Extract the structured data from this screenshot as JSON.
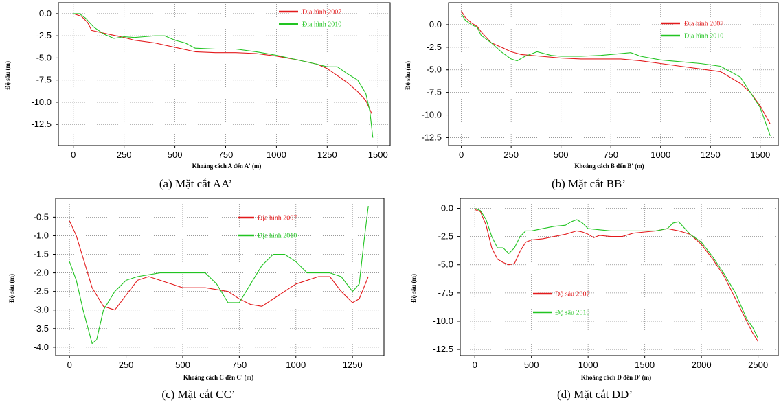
{
  "colors": {
    "series2007": "#e31a1c",
    "series2010": "#22c422",
    "grid": "#8a8a8a",
    "frame": "#000000"
  },
  "chart_data": [
    {
      "type": "line",
      "caption": "(a) Mặt cắt AA’",
      "xlabel": "Khoảng cách A đến A' (m)",
      "ylabel": "Độ sâu (m)",
      "xlim": [
        -50,
        1550
      ],
      "ylim": [
        -14.5,
        1.0
      ],
      "xticks": [
        0,
        250,
        500,
        750,
        1000,
        1250,
        1500
      ],
      "yticks": [
        0.0,
        -2.5,
        -5.0,
        -7.5,
        -10.0,
        -12.5
      ],
      "ytick_labels": [
        "0.0",
        "-2.5",
        "-5.0",
        "-7.5",
        "-10.0",
        "-12.5"
      ],
      "legend": "top-right",
      "series": [
        {
          "name": "Địa hình 2007",
          "color_key": "series2007",
          "x": [
            0,
            40,
            70,
            90,
            150,
            250,
            300,
            400,
            500,
            600,
            700,
            800,
            900,
            1000,
            1100,
            1200,
            1250,
            1300,
            1350,
            1400,
            1440,
            1470
          ],
          "y": [
            0,
            -0.3,
            -1.0,
            -1.9,
            -2.2,
            -2.7,
            -3.0,
            -3.3,
            -3.8,
            -4.3,
            -4.4,
            -4.4,
            -4.5,
            -4.8,
            -5.2,
            -5.7,
            -6.2,
            -7.0,
            -7.8,
            -8.8,
            -9.8,
            -11.3
          ]
        },
        {
          "name": "Địa hình 2010",
          "color_key": "series2010",
          "x": [
            0,
            30,
            60,
            100,
            150,
            200,
            250,
            300,
            350,
            400,
            450,
            500,
            550,
            600,
            700,
            800,
            900,
            1000,
            1100,
            1200,
            1250,
            1300,
            1350,
            1400,
            1440,
            1460,
            1475
          ],
          "y": [
            0,
            0,
            -0.5,
            -1.5,
            -2.3,
            -2.8,
            -2.6,
            -2.7,
            -2.6,
            -2.5,
            -2.5,
            -3.0,
            -3.3,
            -3.9,
            -4.0,
            -4.0,
            -4.3,
            -4.7,
            -5.2,
            -5.7,
            -6.0,
            -6.0,
            -6.8,
            -7.5,
            -9.0,
            -11.0,
            -14.0
          ]
        }
      ]
    },
    {
      "type": "line",
      "caption": "(b) Mặt cắt BB’",
      "xlabel": "Khoảng cách B đến B' (m)",
      "ylabel": "Độ sâu (m)",
      "xlim": [
        -40,
        1580
      ],
      "ylim": [
        -13.0,
        2.2
      ],
      "xticks": [
        0,
        250,
        500,
        750,
        1000,
        1250,
        1500
      ],
      "yticks": [
        0.0,
        -2.5,
        -5.0,
        -7.5,
        -10.0,
        -12.5
      ],
      "ytick_labels": [
        "0.0",
        "-2.5",
        "-5.0",
        "-7.5",
        "-10.0",
        "-12.5"
      ],
      "legend": "top-right",
      "series": [
        {
          "name": "Địa hình 2007",
          "color_key": "series2007",
          "x": [
            0,
            20,
            50,
            80,
            100,
            150,
            200,
            250,
            300,
            400,
            500,
            600,
            700,
            800,
            900,
            1000,
            1100,
            1200,
            1300,
            1400,
            1450,
            1500,
            1550
          ],
          "y": [
            1.5,
            0.8,
            0.2,
            -0.2,
            -0.8,
            -2.0,
            -2.5,
            -3.0,
            -3.3,
            -3.5,
            -3.7,
            -3.8,
            -3.8,
            -3.8,
            -4.0,
            -4.3,
            -4.6,
            -4.9,
            -5.2,
            -6.5,
            -7.5,
            -9.0,
            -11.0
          ]
        },
        {
          "name": "Địa hình 2010",
          "color_key": "series2010",
          "x": [
            0,
            20,
            50,
            80,
            100,
            150,
            200,
            250,
            280,
            320,
            380,
            450,
            500,
            600,
            700,
            800,
            850,
            900,
            1000,
            1100,
            1200,
            1300,
            1400,
            1450,
            1500,
            1550
          ],
          "y": [
            1.2,
            0.5,
            0.0,
            -0.3,
            -1.2,
            -2.0,
            -3.0,
            -3.8,
            -4.0,
            -3.5,
            -3.0,
            -3.4,
            -3.5,
            -3.5,
            -3.4,
            -3.2,
            -3.1,
            -3.5,
            -3.9,
            -4.1,
            -4.3,
            -4.6,
            -5.8,
            -7.5,
            -9.2,
            -12.3
          ]
        }
      ]
    },
    {
      "type": "line",
      "caption": "(c) Mặt cắt CC’",
      "xlabel": "Khoảng cách C đến C' (m)",
      "ylabel": "Độ sâu (m)",
      "xlim": [
        -40,
        1380
      ],
      "ylim": [
        -4.15,
        -0.05
      ],
      "xticks": [
        0,
        250,
        500,
        750,
        1000,
        1250
      ],
      "yticks": [
        -0.5,
        -1.0,
        -1.5,
        -2.0,
        -2.5,
        -3.0,
        -3.5,
        -4.0
      ],
      "ytick_labels": [
        "-0.5",
        "-1.0",
        "-1.5",
        "-2.0",
        "-2.5",
        "-3.0",
        "-3.5",
        "-4.0"
      ],
      "legend": "top-right",
      "series": [
        {
          "name": "Địa hình 2007",
          "color_key": "series2007",
          "x": [
            0,
            30,
            60,
            100,
            150,
            200,
            250,
            300,
            350,
            400,
            500,
            600,
            700,
            750,
            800,
            850,
            900,
            1000,
            1100,
            1150,
            1200,
            1250,
            1280,
            1320
          ],
          "y": [
            -0.6,
            -1.0,
            -1.6,
            -2.4,
            -2.9,
            -3.0,
            -2.6,
            -2.2,
            -2.1,
            -2.2,
            -2.4,
            -2.4,
            -2.5,
            -2.7,
            -2.85,
            -2.9,
            -2.7,
            -2.3,
            -2.1,
            -2.1,
            -2.5,
            -2.8,
            -2.7,
            -2.1
          ]
        },
        {
          "name": "Địa hình 2010",
          "color_key": "series2010",
          "x": [
            0,
            30,
            60,
            100,
            120,
            150,
            200,
            250,
            300,
            400,
            500,
            600,
            650,
            700,
            750,
            800,
            850,
            900,
            950,
            1000,
            1050,
            1100,
            1150,
            1200,
            1250,
            1280,
            1300,
            1320
          ],
          "y": [
            -1.7,
            -2.2,
            -3.0,
            -3.9,
            -3.8,
            -3.0,
            -2.5,
            -2.2,
            -2.1,
            -2.0,
            -2.0,
            -2.0,
            -2.3,
            -2.8,
            -2.8,
            -2.3,
            -1.8,
            -1.5,
            -1.5,
            -1.7,
            -2.0,
            -2.0,
            -2.0,
            -2.1,
            -2.5,
            -2.3,
            -1.2,
            -0.2
          ]
        }
      ]
    },
    {
      "type": "line",
      "caption": "(d) Mặt cắt DD’",
      "xlabel": "Khoảng cách D đến D' (m)",
      "ylabel": "Độ sâu (m)",
      "xlim": [
        -80,
        2660
      ],
      "ylim": [
        -12.8,
        0.7
      ],
      "xticks": [
        0,
        500,
        1000,
        1500,
        2000,
        2500
      ],
      "yticks": [
        0.0,
        -2.5,
        -5.0,
        -7.5,
        -10.0,
        -12.5
      ],
      "ytick_labels": [
        "0.0",
        "-2.5",
        "-5.0",
        "-7.5",
        "-10.0",
        "-12.5"
      ],
      "legend": "center-left",
      "series": [
        {
          "name": "Độ sâu 2007",
          "color_key": "series2007",
          "x": [
            0,
            50,
            100,
            150,
            200,
            250,
            300,
            350,
            400,
            450,
            500,
            600,
            700,
            800,
            900,
            950,
            1000,
            1050,
            1100,
            1200,
            1300,
            1400,
            1500,
            1600,
            1700,
            1800,
            1900,
            2000,
            2100,
            2200,
            2300,
            2400,
            2450,
            2500
          ],
          "y": [
            -0.1,
            -0.3,
            -1.5,
            -3.5,
            -4.5,
            -4.8,
            -5.0,
            -4.9,
            -3.8,
            -3.0,
            -2.8,
            -2.7,
            -2.5,
            -2.3,
            -2.0,
            -2.1,
            -2.3,
            -2.6,
            -2.4,
            -2.5,
            -2.5,
            -2.2,
            -2.1,
            -2.0,
            -1.8,
            -2.0,
            -2.3,
            -3.2,
            -4.5,
            -6.0,
            -8.0,
            -10.0,
            -11.0,
            -11.8
          ]
        },
        {
          "name": "Độ sâu 2010",
          "color_key": "series2010",
          "x": [
            0,
            50,
            100,
            150,
            200,
            250,
            300,
            350,
            400,
            450,
            500,
            600,
            700,
            800,
            850,
            900,
            950,
            1000,
            1100,
            1200,
            1300,
            1400,
            1500,
            1600,
            1700,
            1750,
            1800,
            1900,
            2000,
            2100,
            2200,
            2300,
            2400,
            2450,
            2500
          ],
          "y": [
            0.0,
            -0.2,
            -1.0,
            -2.5,
            -3.5,
            -3.5,
            -4.0,
            -3.5,
            -2.5,
            -2.0,
            -2.0,
            -1.8,
            -1.6,
            -1.5,
            -1.2,
            -1.0,
            -1.3,
            -1.8,
            -1.9,
            -2.0,
            -2.0,
            -2.0,
            -2.0,
            -2.0,
            -1.8,
            -1.3,
            -1.2,
            -2.3,
            -3.0,
            -4.3,
            -5.8,
            -7.5,
            -9.8,
            -10.5,
            -11.5
          ]
        }
      ]
    }
  ]
}
